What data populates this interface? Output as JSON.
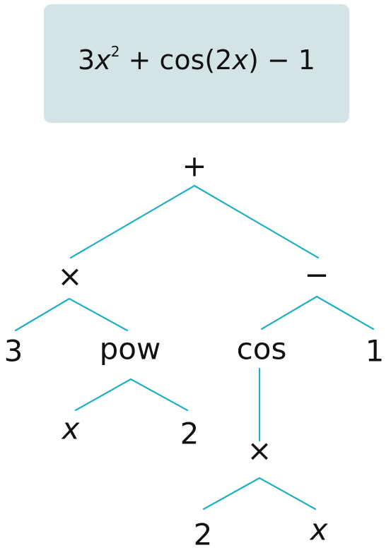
{
  "formula": {
    "coef": "3",
    "base": "x",
    "exp": "2",
    "plus": "+",
    "cos": "cos",
    "open": "(",
    "arg_coef": "2",
    "arg_var": "x",
    "close": ")",
    "minus": "−",
    "const": "1"
  },
  "tree": {
    "root": {
      "label": "+"
    },
    "times1": {
      "label": "×"
    },
    "minus": {
      "label": "−"
    },
    "three": {
      "label": "3"
    },
    "pow": {
      "label": "pow"
    },
    "cos": {
      "label": "cos"
    },
    "one": {
      "label": "1"
    },
    "pow_x": {
      "label": "x"
    },
    "pow_2": {
      "label": "2"
    },
    "times2": {
      "label": "×"
    },
    "arg_2": {
      "label": "2"
    },
    "arg_x": {
      "label": "x"
    }
  },
  "colors": {
    "edge": "#1fb0c2",
    "formula_background": "#d3e3e6",
    "text": "#111111"
  }
}
